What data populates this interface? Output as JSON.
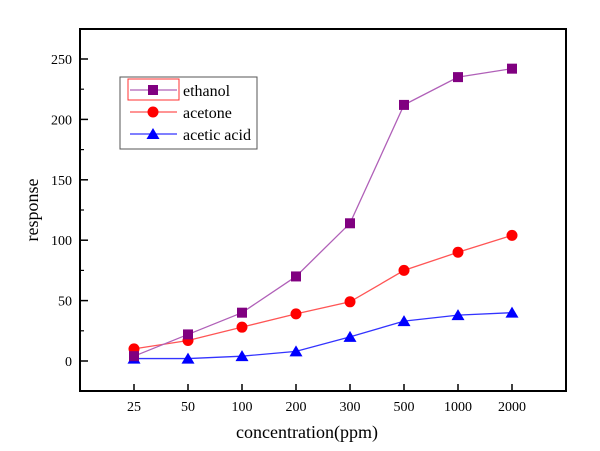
{
  "chart_data": {
    "type": "line",
    "title": "",
    "xlabel": "concentration(ppm)",
    "ylabel": "response",
    "categories": [
      "25",
      "50",
      "100",
      "200",
      "300",
      "500",
      "1000",
      "2000"
    ],
    "ylim": [
      -25,
      275
    ],
    "yticks": [
      0,
      50,
      100,
      150,
      200,
      250
    ],
    "grid": false,
    "legend_position": "top-left",
    "series": [
      {
        "name": "ethanol",
        "marker": "square",
        "color": "#800080",
        "line_color": "#b060b8",
        "values": [
          4,
          22,
          40,
          70,
          114,
          212,
          235,
          242
        ]
      },
      {
        "name": "acetone",
        "marker": "circle",
        "color": "#ff0000",
        "line_color": "#ff5555",
        "values": [
          10,
          17,
          28,
          39,
          49,
          75,
          90,
          104
        ]
      },
      {
        "name": "acetic acid",
        "marker": "triangle",
        "color": "#0000ff",
        "line_color": "#3333ff",
        "values": [
          2,
          2,
          4,
          8,
          20,
          33,
          38,
          40
        ]
      }
    ]
  }
}
